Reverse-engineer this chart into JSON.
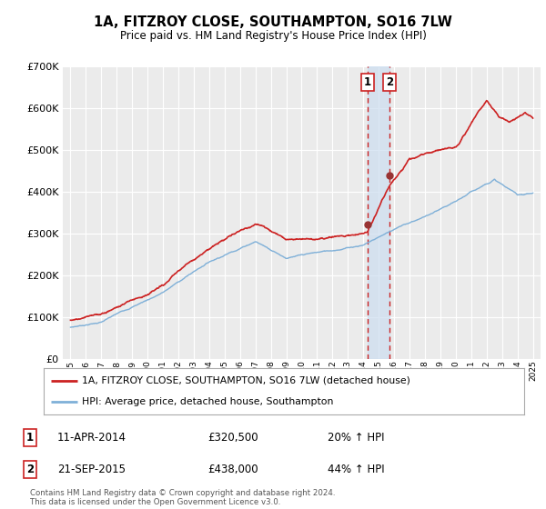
{
  "title": "1A, FITZROY CLOSE, SOUTHAMPTON, SO16 7LW",
  "subtitle": "Price paid vs. HM Land Registry's House Price Index (HPI)",
  "legend_line1": "1A, FITZROY CLOSE, SOUTHAMPTON, SO16 7LW (detached house)",
  "legend_line2": "HPI: Average price, detached house, Southampton",
  "footer": "Contains HM Land Registry data © Crown copyright and database right 2024.\nThis data is licensed under the Open Government Licence v3.0.",
  "event1_label": "1",
  "event1_date": "11-APR-2014",
  "event1_price": "£320,500",
  "event1_pct": "20% ↑ HPI",
  "event1_year": 2014.27,
  "event1_value": 320500,
  "event2_label": "2",
  "event2_date": "21-SEP-2015",
  "event2_price": "£438,000",
  "event2_pct": "44% ↑ HPI",
  "event2_year": 2015.72,
  "event2_value": 438000,
  "ylim": [
    0,
    700000
  ],
  "xlim": [
    1994.5,
    2025.5
  ],
  "red_color": "#cc2222",
  "blue_color": "#7fb0d8",
  "bg_color": "#ebebeb",
  "grid_color": "#ffffff",
  "event_color": "#cc2222",
  "shade_color": "#ccddf0",
  "dot_color": "#993333"
}
